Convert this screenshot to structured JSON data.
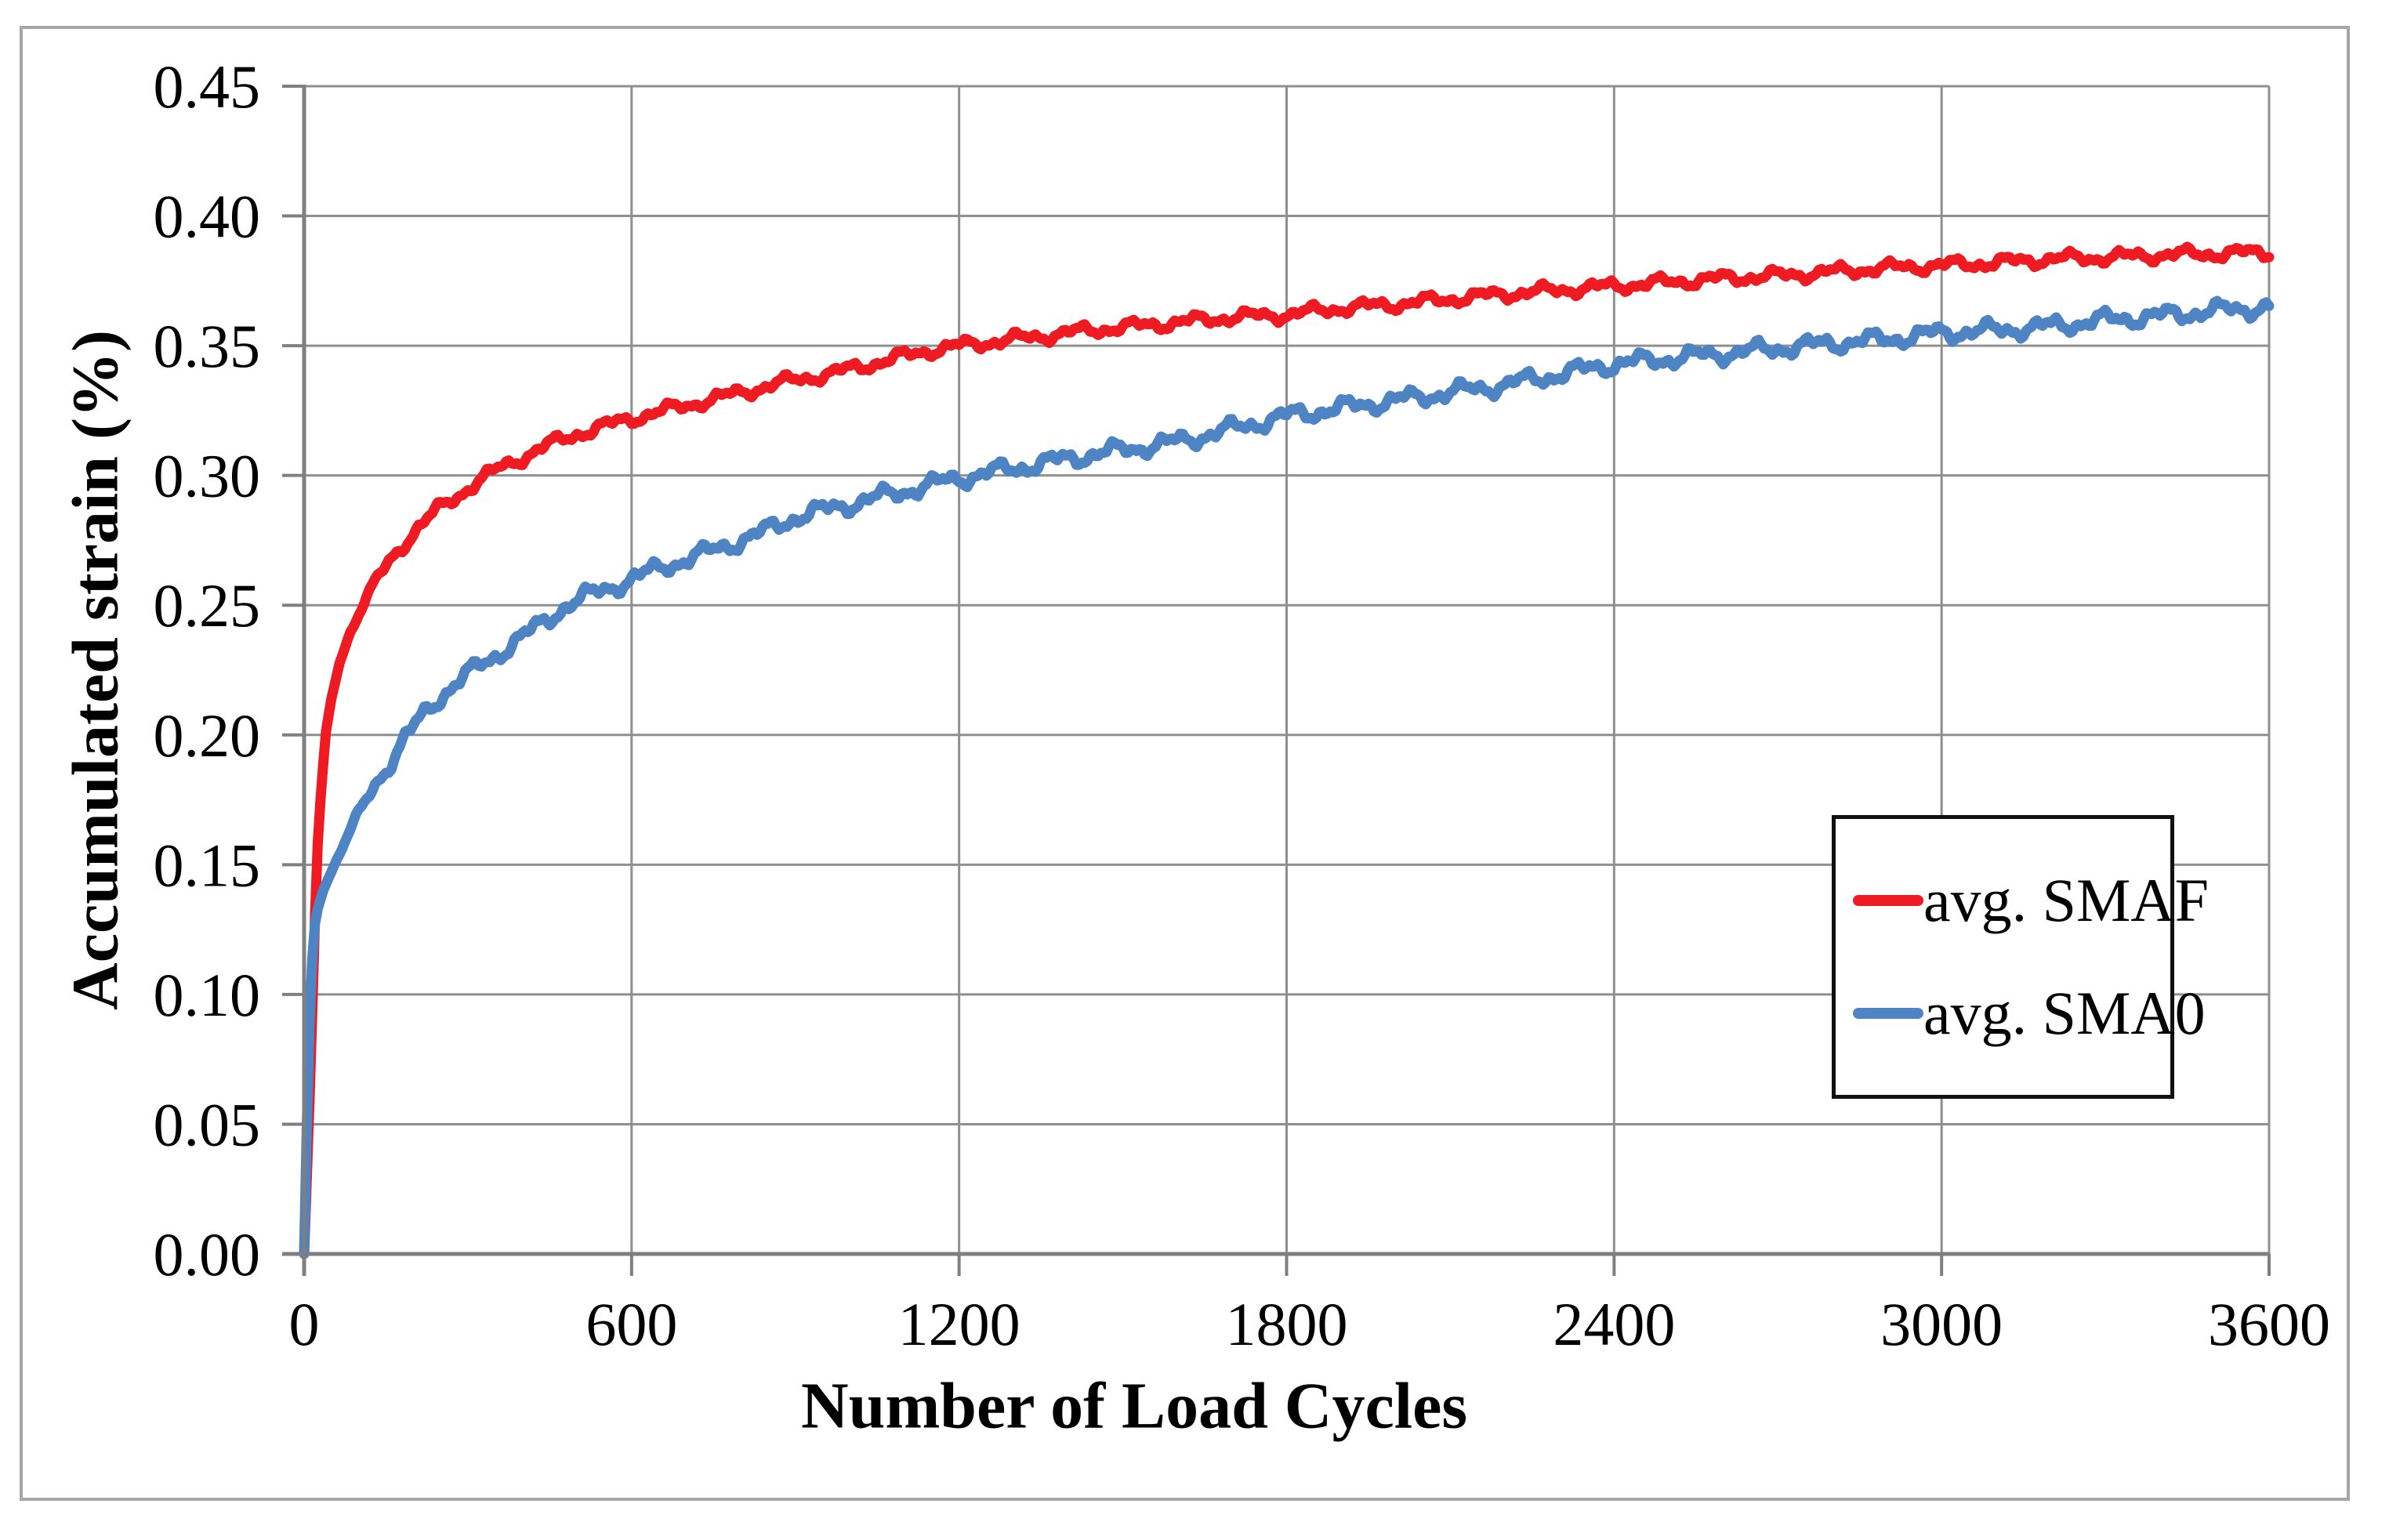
{
  "figure": {
    "border_color": "#a6a6a6",
    "background_color": "#ffffff",
    "gridline_color": "#8f8f8f",
    "axis_color": "#7f7f7f",
    "text_color": "#000000",
    "legend_border_color": "#111111"
  },
  "chart_data": {
    "type": "line",
    "title": "",
    "xlabel": "Number of Load Cycles",
    "ylabel": "Accumulated strain (%)",
    "xlim": [
      0,
      3600
    ],
    "ylim": [
      0,
      0.45
    ],
    "x_ticks": [
      0,
      600,
      1200,
      1800,
      2400,
      3000,
      3600
    ],
    "x_tick_labels": [
      "0",
      "600",
      "1200",
      "1800",
      "2400",
      "3000",
      "3600"
    ],
    "y_ticks": [
      0,
      0.05,
      0.1,
      0.15,
      0.2,
      0.25,
      0.3,
      0.35,
      0.4,
      0.45
    ],
    "y_tick_labels": [
      "0.00",
      "0.05",
      "0.10",
      "0.15",
      "0.20",
      "0.25",
      "0.30",
      "0.35",
      "0.40",
      "0.45"
    ],
    "grid": true,
    "legend_position": "inside-right-middle",
    "series": [
      {
        "name": "avg. SMAF",
        "color": "#ee1b23",
        "line_width": 13,
        "noise_amplitude": 0.0016,
        "points": [
          [
            0,
            0
          ],
          [
            10,
            0.06
          ],
          [
            16,
            0.1
          ],
          [
            20,
            0.13
          ],
          [
            24,
            0.155
          ],
          [
            30,
            0.175
          ],
          [
            39,
            0.2
          ],
          [
            50,
            0.214
          ],
          [
            65,
            0.228
          ],
          [
            85,
            0.24
          ],
          [
            108,
            0.25
          ],
          [
            130,
            0.259
          ],
          [
            160,
            0.268
          ],
          [
            200,
            0.278
          ],
          [
            240,
            0.286
          ],
          [
            280,
            0.292
          ],
          [
            320,
            0.298
          ],
          [
            360,
            0.303
          ],
          [
            400,
            0.307
          ],
          [
            450,
            0.312
          ],
          [
            500,
            0.316
          ],
          [
            550,
            0.319
          ],
          [
            600,
            0.322
          ],
          [
            660,
            0.325
          ],
          [
            720,
            0.328
          ],
          [
            780,
            0.331
          ],
          [
            840,
            0.334
          ],
          [
            900,
            0.337
          ],
          [
            960,
            0.339
          ],
          [
            1020,
            0.342
          ],
          [
            1080,
            0.345
          ],
          [
            1140,
            0.348
          ],
          [
            1200,
            0.35
          ],
          [
            1280,
            0.352
          ],
          [
            1360,
            0.354
          ],
          [
            1440,
            0.356
          ],
          [
            1520,
            0.3575
          ],
          [
            1600,
            0.359
          ],
          [
            1700,
            0.361
          ],
          [
            1800,
            0.362
          ],
          [
            1900,
            0.3645
          ],
          [
            2000,
            0.366
          ],
          [
            2100,
            0.368
          ],
          [
            2200,
            0.37
          ],
          [
            2300,
            0.3715
          ],
          [
            2400,
            0.373
          ],
          [
            2500,
            0.3745
          ],
          [
            2600,
            0.376
          ],
          [
            2700,
            0.377
          ],
          [
            2800,
            0.3785
          ],
          [
            2900,
            0.38
          ],
          [
            3000,
            0.381
          ],
          [
            3100,
            0.382
          ],
          [
            3200,
            0.3835
          ],
          [
            3300,
            0.384
          ],
          [
            3400,
            0.385
          ],
          [
            3500,
            0.3855
          ],
          [
            3600,
            0.386
          ]
        ]
      },
      {
        "name": "avg. SMA0",
        "color": "#4e84c4",
        "line_width": 13,
        "noise_amplitude": 0.0022,
        "points": [
          [
            0,
            0
          ],
          [
            6,
            0.06
          ],
          [
            10,
            0.09
          ],
          [
            14,
            0.11
          ],
          [
            18,
            0.125
          ],
          [
            25,
            0.133
          ],
          [
            35,
            0.14
          ],
          [
            45,
            0.145
          ],
          [
            60,
            0.152
          ],
          [
            80,
            0.161
          ],
          [
            100,
            0.17
          ],
          [
            130,
            0.181
          ],
          [
            160,
            0.19
          ],
          [
            190,
            0.2
          ],
          [
            220,
            0.208
          ],
          [
            250,
            0.215
          ],
          [
            290,
            0.222
          ],
          [
            340,
            0.229
          ],
          [
            380,
            0.235
          ],
          [
            430,
            0.242
          ],
          [
            480,
            0.25
          ],
          [
            530,
            0.2545
          ],
          [
            600,
            0.26
          ],
          [
            660,
            0.265
          ],
          [
            720,
            0.269
          ],
          [
            780,
            0.2735
          ],
          [
            840,
            0.278
          ],
          [
            900,
            0.284
          ],
          [
            960,
            0.287
          ],
          [
            1020,
            0.29
          ],
          [
            1080,
            0.293
          ],
          [
            1140,
            0.296
          ],
          [
            1200,
            0.299
          ],
          [
            1280,
            0.302
          ],
          [
            1360,
            0.305
          ],
          [
            1440,
            0.308
          ],
          [
            1520,
            0.3105
          ],
          [
            1600,
            0.313
          ],
          [
            1700,
            0.318
          ],
          [
            1800,
            0.323
          ],
          [
            1900,
            0.326
          ],
          [
            2000,
            0.329
          ],
          [
            2100,
            0.332
          ],
          [
            2200,
            0.335
          ],
          [
            2300,
            0.339
          ],
          [
            2400,
            0.343
          ],
          [
            2500,
            0.345
          ],
          [
            2600,
            0.347
          ],
          [
            2700,
            0.349
          ],
          [
            2800,
            0.351
          ],
          [
            2900,
            0.3525
          ],
          [
            3000,
            0.355
          ],
          [
            3100,
            0.356
          ],
          [
            3200,
            0.3575
          ],
          [
            3300,
            0.36
          ],
          [
            3400,
            0.3615
          ],
          [
            3500,
            0.3635
          ],
          [
            3600,
            0.365
          ]
        ]
      }
    ]
  }
}
